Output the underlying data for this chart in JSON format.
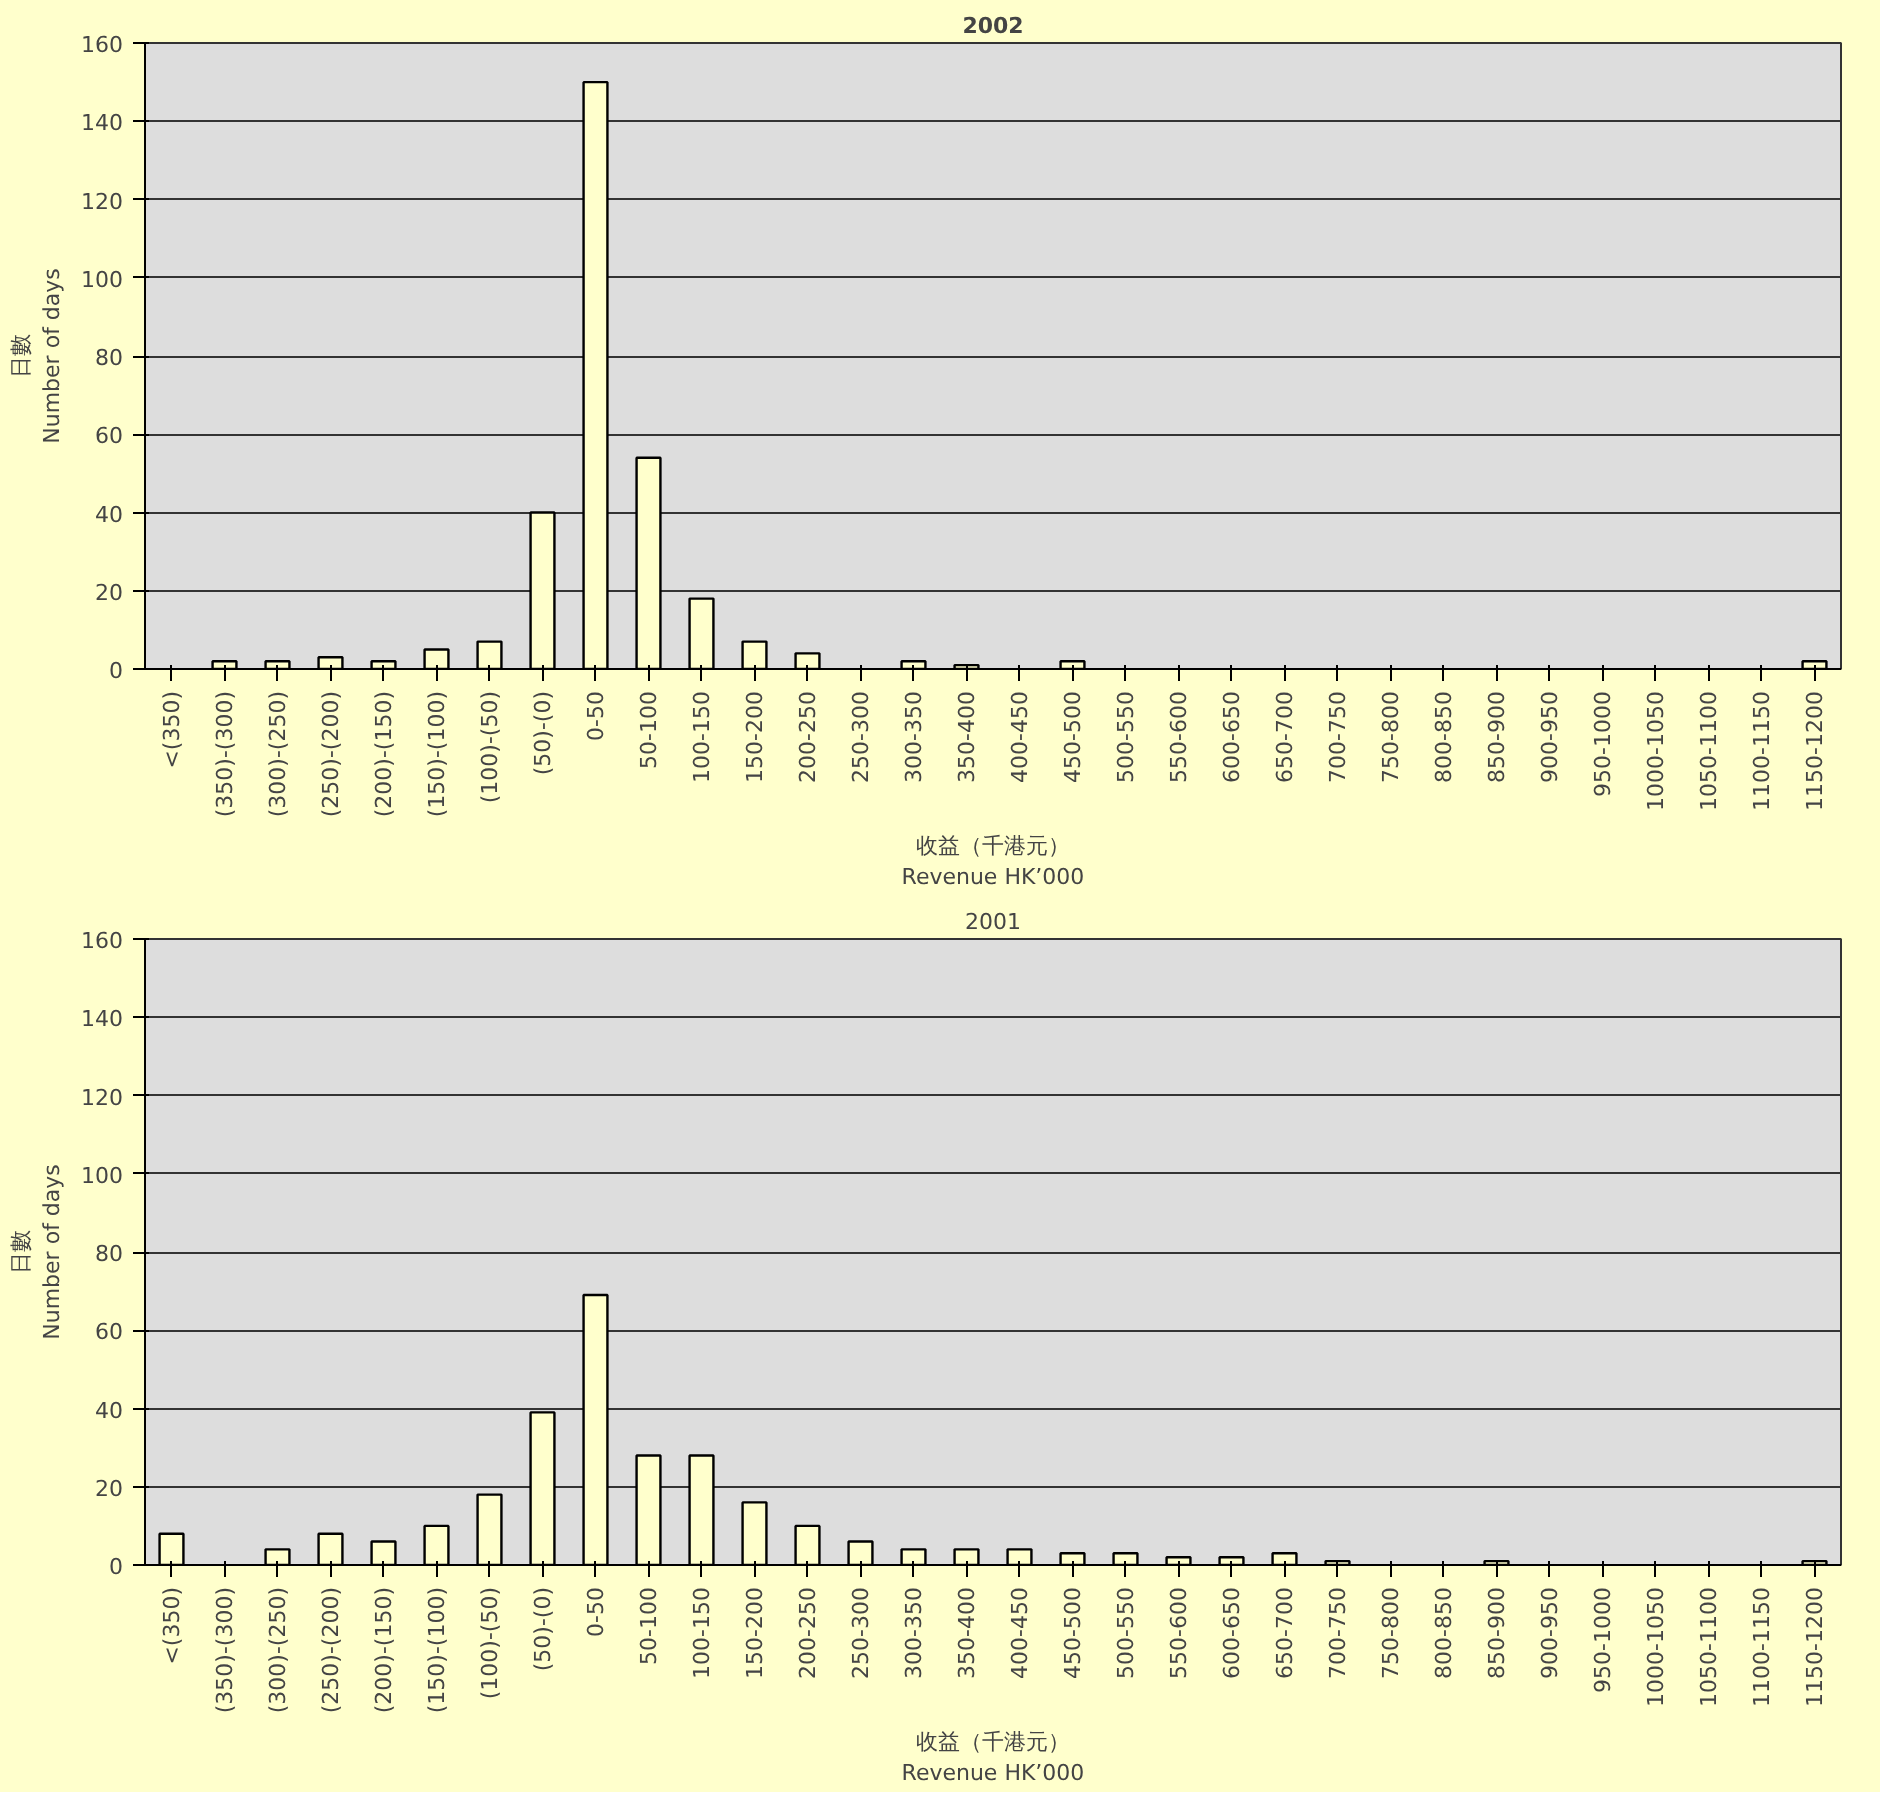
{
  "chart_data": [
    {
      "type": "bar",
      "title": "2002",
      "xlabel": "收益（千港元）\nRevenue HK’000",
      "ylabel": "日數\nNumber of days",
      "categories": [
        "<(350)",
        "(350)-(300)",
        "(300)-(250)",
        "(250)-(200)",
        "(200)-(150)",
        "(150)-(100)",
        "(100)-(50)",
        "(50)-(0)",
        "0-50",
        "50-100",
        "100-150",
        "150-200",
        "200-250",
        "250-300",
        "300-350",
        "350-400",
        "400-450",
        "450-500",
        "500-550",
        "550-600",
        "600-650",
        "650-700",
        "700-750",
        "750-800",
        "800-850",
        "850-900",
        "900-950",
        "950-1000",
        "1000-1050",
        "1050-1100",
        "1100-1150",
        "1150-1200"
      ],
      "values": [
        0,
        2,
        2,
        3,
        2,
        5,
        7,
        40,
        150,
        54,
        18,
        7,
        4,
        0,
        2,
        1,
        0,
        2,
        0,
        0,
        0,
        0,
        0,
        0,
        0,
        0,
        0,
        0,
        0,
        0,
        0,
        2
      ],
      "color": "#ffffcc",
      "ylim": [
        0,
        160
      ],
      "yticks": [
        0,
        20,
        40,
        60,
        80,
        100,
        120,
        140,
        160
      ],
      "grid": "y"
    },
    {
      "type": "bar",
      "title": "2001",
      "xlabel": "收益（千港元）\nRevenue HK’000",
      "ylabel": "日數\nNumber of days",
      "categories": [
        "<(350)",
        "(350)-(300)",
        "(300)-(250)",
        "(250)-(200)",
        "(200)-(150)",
        "(150)-(100)",
        "(100)-(50)",
        "(50)-(0)",
        "0-50",
        "50-100",
        "100-150",
        "150-200",
        "200-250",
        "250-300",
        "300-350",
        "350-400",
        "400-450",
        "450-500",
        "500-550",
        "550-600",
        "600-650",
        "650-700",
        "700-750",
        "750-800",
        "800-850",
        "850-900",
        "900-950",
        "950-1000",
        "1000-1050",
        "1050-1100",
        "1100-1150",
        "1150-1200"
      ],
      "values": [
        8,
        0,
        4,
        8,
        6,
        10,
        18,
        39,
        69,
        28,
        28,
        16,
        10,
        6,
        4,
        4,
        4,
        3,
        3,
        2,
        2,
        3,
        1,
        0,
        0,
        1,
        0,
        0,
        0,
        0,
        0,
        1
      ],
      "color": "#ffffcc",
      "ylim": [
        0,
        160
      ],
      "yticks": [
        0,
        20,
        40,
        60,
        80,
        100,
        120,
        140,
        160
      ],
      "grid": "y"
    }
  ]
}
